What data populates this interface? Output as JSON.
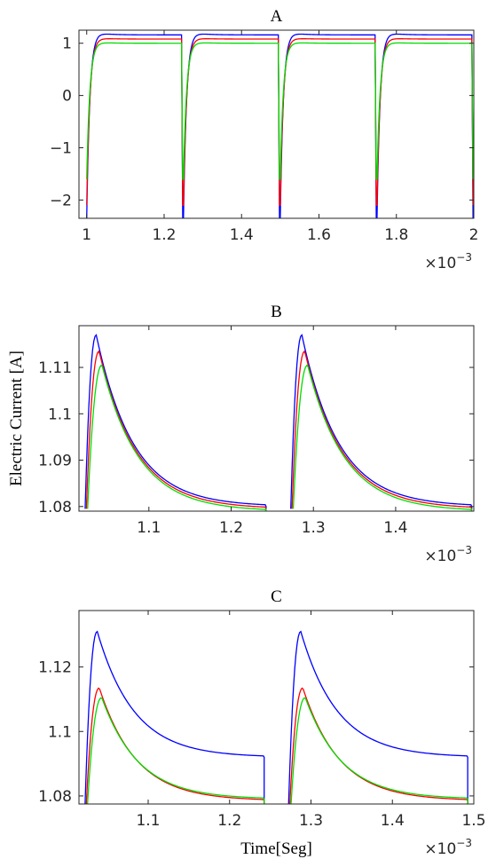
{
  "chart_data": [
    {
      "id": "A",
      "type": "line",
      "title": "A",
      "xlabel": "",
      "ylabel": "",
      "x_exponent_label": "×10",
      "x_exponent": "−3",
      "xlim": [
        0.98,
        2.0
      ],
      "ylim": [
        -2.35,
        1.25
      ],
      "xticks": [
        1,
        1.2,
        1.4,
        1.6,
        1.8,
        2
      ],
      "xtick_labels": [
        "1",
        "1.2",
        "1.4",
        "1.6",
        "1.8",
        "2"
      ],
      "yticks": [
        -2,
        -1,
        0,
        1
      ],
      "ytick_labels": [
        "−2",
        "−1",
        "0",
        "1"
      ],
      "grid": false,
      "series": [
        {
          "color": "#0000ff",
          "period_start": [
            1.0,
            1.25,
            1.5,
            1.75
          ],
          "pulse_end": [
            1.245,
            1.495,
            1.745,
            1.995
          ],
          "peak": 1.2,
          "settle": 1.16,
          "off": 1.16,
          "spike": -2.35
        },
        {
          "color": "#ff0000",
          "period_start": [
            1.0,
            1.25,
            1.5,
            1.75
          ],
          "pulse_end": [
            1.245,
            1.495,
            1.745,
            1.995
          ],
          "peak": 1.1,
          "settle": 1.08,
          "off": 1.08,
          "spike": -2.1
        },
        {
          "color": "#00dd00",
          "period_start": [
            1.0,
            1.25,
            1.5,
            1.75
          ],
          "pulse_end": [
            1.245,
            1.495,
            1.745,
            1.995
          ],
          "peak": 1.02,
          "settle": 1.0,
          "off": 1.0,
          "spike": -1.6
        }
      ]
    },
    {
      "id": "B",
      "type": "line",
      "title": "B",
      "xlabel": "",
      "ylabel": "Electric Current [A]",
      "x_exponent_label": "×10",
      "x_exponent": "−3",
      "xlim": [
        1.015,
        1.495
      ],
      "ylim": [
        1.079,
        1.119
      ],
      "xticks": [
        1.1,
        1.2,
        1.3,
        1.4
      ],
      "xtick_labels": [
        "1.1",
        "1.2",
        "1.3",
        "1.4"
      ],
      "yticks": [
        1.08,
        1.09,
        1.1,
        1.11
      ],
      "ytick_labels": [
        "1.08",
        "1.09",
        "1.1",
        "1.11"
      ],
      "grid": false,
      "series": [
        {
          "color": "#0000ff",
          "start": [
            1.0225,
            1.2725
          ],
          "end": [
            1.2425,
            1.4925
          ],
          "peak_t": 0.0135,
          "peak": 1.117,
          "base": 1.08,
          "floor": 1.0795
        },
        {
          "color": "#ff0000",
          "start": [
            1.024,
            1.274
          ],
          "end": [
            1.2425,
            1.4925
          ],
          "peak_t": 0.0155,
          "peak": 1.1135,
          "base": 1.0795,
          "floor": 1.0795
        },
        {
          "color": "#00dd00",
          "start": [
            1.0255,
            1.2755
          ],
          "end": [
            1.2425,
            1.4925
          ],
          "peak_t": 0.0175,
          "peak": 1.1105,
          "base": 1.079,
          "floor": 1.0795
        }
      ]
    },
    {
      "id": "C",
      "type": "line",
      "title": "C",
      "xlabel": "Time[Seg]",
      "ylabel": "",
      "x_exponent_label": "×10",
      "x_exponent": "−3",
      "xlim": [
        1.015,
        1.5
      ],
      "ylim": [
        1.0775,
        1.1375
      ],
      "xticks": [
        1.1,
        1.2,
        1.3,
        1.4,
        1.5
      ],
      "xtick_labels": [
        "1.1",
        "1.2",
        "1.3",
        "1.4",
        "1.5"
      ],
      "yticks": [
        1.08,
        1.1,
        1.12
      ],
      "ytick_labels": [
        "1.08",
        "1.1",
        "1.12"
      ],
      "grid": false,
      "series": [
        {
          "color": "#0000ff",
          "start": [
            1.0225,
            1.2725
          ],
          "end": [
            1.2425,
            1.4925
          ],
          "peak_t": 0.015,
          "peak": 1.131,
          "base": 1.092,
          "floor": 1.0775
        },
        {
          "color": "#ff0000",
          "start": [
            1.024,
            1.274
          ],
          "end": [
            1.2425,
            1.4925
          ],
          "peak_t": 0.016,
          "peak": 1.1135,
          "base": 1.0785,
          "floor": 1.0775
        },
        {
          "color": "#00dd00",
          "start": [
            1.0255,
            1.2755
          ],
          "end": [
            1.2425,
            1.4925
          ],
          "peak_t": 0.0175,
          "peak": 1.1105,
          "base": 1.079,
          "floor": 1.0775
        }
      ]
    }
  ]
}
